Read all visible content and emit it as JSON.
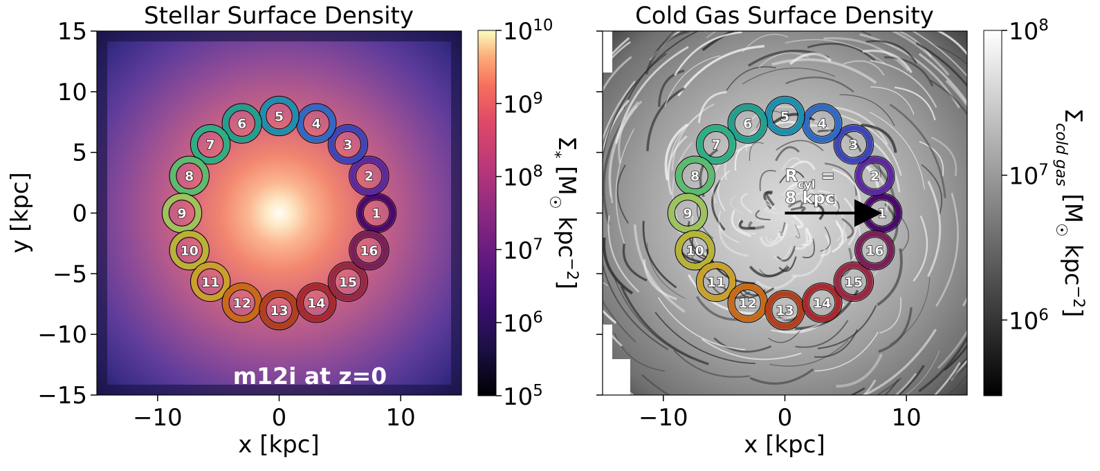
{
  "chart_data": [
    {
      "type": "heatmap",
      "title": "Stellar Surface Density",
      "xlabel": "x [kpc]",
      "ylabel": "y [kpc]",
      "xlim": [
        -15,
        15
      ],
      "ylim": [
        -15,
        15
      ],
      "xticks": [
        -10,
        0,
        10
      ],
      "yticks": [
        -15,
        -10,
        -5,
        0,
        5,
        10,
        15
      ],
      "xtick_labels": [
        "−10",
        "0",
        "10"
      ],
      "ytick_labels": [
        "−15",
        "−10",
        "−5",
        "0",
        "5",
        "10",
        "15"
      ],
      "colormap": "magma",
      "colorbar": {
        "scale": "log",
        "range": [
          100000,
          10000000000
        ],
        "tick_bases": [
          "10",
          "10",
          "10",
          "10",
          "10",
          "10"
        ],
        "tick_exponents": [
          "5",
          "6",
          "7",
          "8",
          "9",
          "10"
        ],
        "label_main": "Σ",
        "label_sub": "*",
        "label_unit_pre": "[M",
        "label_unit_odot": "☉",
        "label_unit_kpc": "kpc",
        "label_unit_exp": "−2",
        "label_unit_close": "]"
      },
      "annotation": "m12i at z=0",
      "regions": {
        "radius_kpc": 8,
        "labels": [
          "1",
          "2",
          "3",
          "4",
          "5",
          "6",
          "7",
          "8",
          "9",
          "10",
          "11",
          "12",
          "13",
          "14",
          "15",
          "16"
        ],
        "angles_deg": [
          0,
          22.5,
          45,
          67.5,
          90,
          112.5,
          135,
          157.5,
          180,
          202.5,
          225,
          247.5,
          270,
          292.5,
          315,
          337.5
        ],
        "colors": [
          "#4b0a6b",
          "#5c2aa0",
          "#3e45b8",
          "#2f6ac5",
          "#1f8fae",
          "#21a08f",
          "#2eae85",
          "#5abc6d",
          "#9cc45a",
          "#b8b335",
          "#c9a12a",
          "#c96a17",
          "#b3401d",
          "#a82a30",
          "#9a2844",
          "#7a2058"
        ]
      }
    },
    {
      "type": "heatmap",
      "title": "Cold Gas Surface Density",
      "xlabel": "x [kpc]",
      "xlim": [
        -15,
        15
      ],
      "ylim": [
        -15,
        15
      ],
      "xticks": [
        -10,
        0,
        10
      ],
      "xtick_labels": [
        "−10",
        "0",
        "10"
      ],
      "yticks": [
        -15,
        -10,
        -5,
        0,
        5,
        10,
        15
      ],
      "colormap": "gray",
      "colorbar": {
        "scale": "log",
        "range": [
          300000,
          100000000
        ],
        "tick_bases": [
          "10",
          "10",
          "10"
        ],
        "tick_exponents": [
          "6",
          "7",
          "8"
        ],
        "label_main": "Σ",
        "label_sub": "cold gas",
        "label_unit_pre": "[M",
        "label_unit_odot": "☉",
        "label_unit_kpc": "kpc",
        "label_unit_exp": "−2",
        "label_unit_close": "]"
      },
      "arrow_annotation": {
        "line1_main": "R",
        "line1_sub": "cyl",
        "line1_end": " =",
        "line2": "8 kpc",
        "from": [
          0,
          0
        ],
        "to": [
          8,
          0
        ]
      }
    }
  ]
}
